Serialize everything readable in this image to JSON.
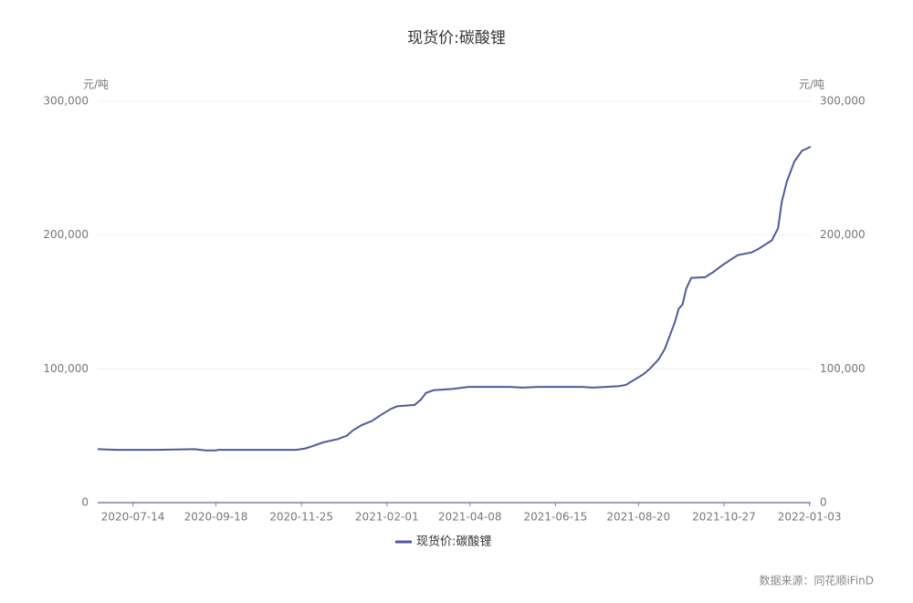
{
  "chart_data": {
    "type": "line",
    "title": "现货价:碳酸锂",
    "y_unit": "元/吨",
    "y2_unit": "元/吨",
    "source": "数据来源：同花顺iFinD",
    "x": [
      "2020-06-16",
      "2020-07-01",
      "2020-08-01",
      "2020-09-01",
      "2020-09-10",
      "2020-09-18",
      "2020-09-20",
      "2020-11-21",
      "2020-11-28",
      "2020-12-03",
      "2020-12-12",
      "2020-12-24",
      "2020-12-31",
      "2021-01-05",
      "2021-01-12",
      "2021-01-20",
      "2021-01-28",
      "2021-02-04",
      "2021-02-09",
      "2021-02-23",
      "2021-02-28",
      "2021-03-04",
      "2021-03-10",
      "2021-03-25",
      "2021-04-07",
      "2021-05-10",
      "2021-05-20",
      "2021-06-01",
      "2021-07-06",
      "2021-07-15",
      "2021-08-04",
      "2021-08-10",
      "2021-08-17",
      "2021-08-24",
      "2021-08-29",
      "2021-09-05",
      "2021-09-10",
      "2021-09-14",
      "2021-09-18",
      "2021-09-21",
      "2021-09-24",
      "2021-09-27",
      "2021-10-01",
      "2021-10-12",
      "2021-10-18",
      "2021-10-25",
      "2021-11-02",
      "2021-11-07",
      "2021-11-18",
      "2021-11-24",
      "2021-11-29",
      "2021-12-04",
      "2021-12-09",
      "2021-12-12",
      "2021-12-16",
      "2021-12-22",
      "2021-12-28",
      "2022-01-04"
    ],
    "series": [
      {
        "name": "现货价:碳酸锂",
        "color": "#4e5a9a",
        "values": [
          40000,
          39500,
          39500,
          40000,
          39000,
          39000,
          39500,
          39500,
          40500,
          42000,
          45000,
          47500,
          50000,
          54000,
          58000,
          61000,
          66000,
          70000,
          72000,
          73000,
          77000,
          82000,
          84000,
          85000,
          86500,
          86500,
          86000,
          86500,
          86500,
          86000,
          87000,
          88000,
          92000,
          96000,
          100000,
          107000,
          115000,
          125000,
          135000,
          145000,
          148000,
          160000,
          168000,
          168500,
          172000,
          177000,
          182000,
          185000,
          187000,
          190000,
          193000,
          196000,
          205000,
          225000,
          240000,
          255000,
          263000,
          266000
        ]
      }
    ],
    "xlim": [
      "2020-06-16",
      "2022-01-04"
    ],
    "xticks": [
      "2020-07-14",
      "2020-09-18",
      "2020-11-25",
      "2021-02-01",
      "2021-04-08",
      "2021-06-15",
      "2021-08-20",
      "2021-10-27",
      "2022-01-03"
    ],
    "ylim": [
      0,
      300000
    ],
    "yticks": [
      0,
      {
        "value": 100000,
        "label": "100,000"
      },
      {
        "value": 200000,
        "label": "200,000"
      },
      {
        "value": 300000,
        "label": "300,000"
      }
    ],
    "y2lim": [
      0,
      300000
    ],
    "y2ticks": [
      0,
      {
        "value": 100000,
        "label": "100,000"
      },
      {
        "value": 200000,
        "label": "200,000"
      },
      {
        "value": 300000,
        "label": "300,000"
      }
    ],
    "grid": true
  }
}
